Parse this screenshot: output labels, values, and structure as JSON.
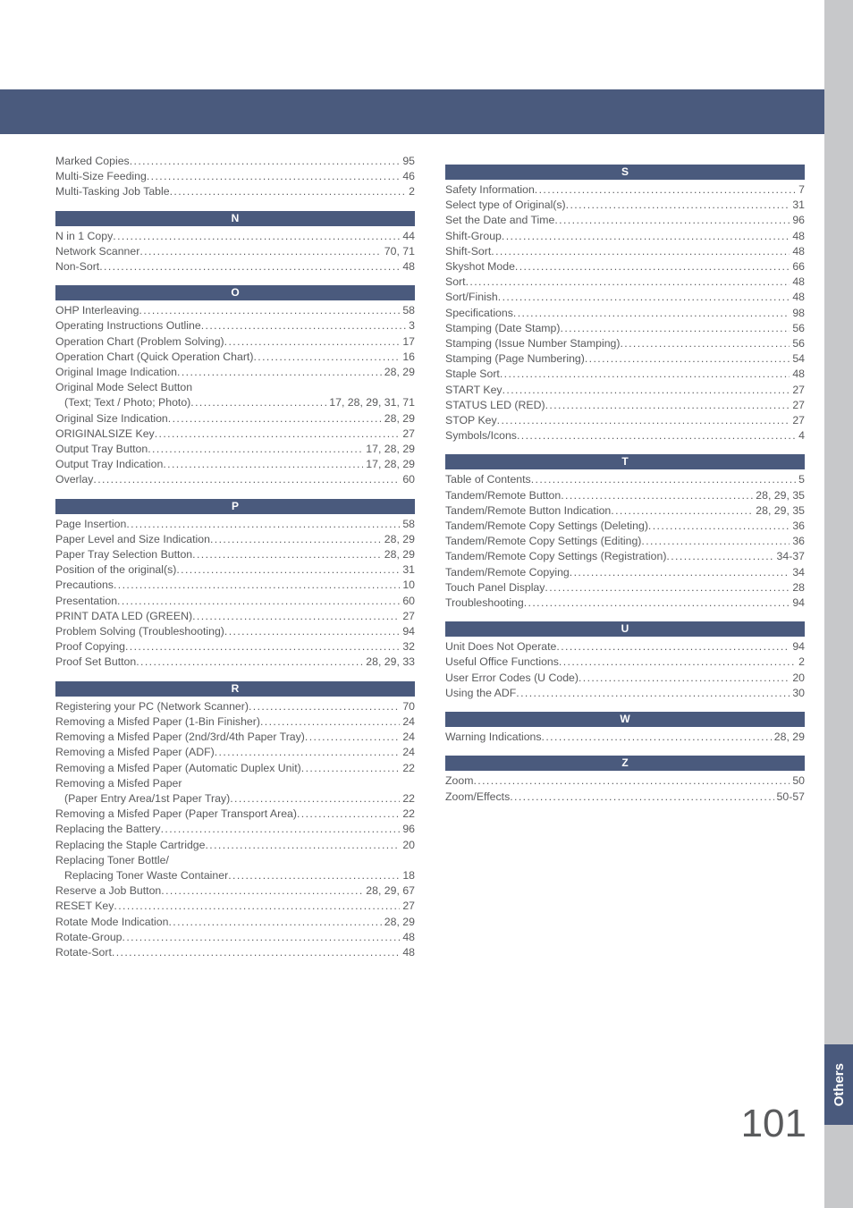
{
  "colors": {
    "accent": "#4a5a7d",
    "side_bar": "#c7c8ca",
    "text": "#595a5c",
    "white": "#ffffff"
  },
  "page_number": "101",
  "side_tab": "Others",
  "left_column": [
    {
      "type": "entry",
      "label": "Marked Copies",
      "page": "95"
    },
    {
      "type": "entry",
      "label": "Multi-Size Feeding",
      "page": "46"
    },
    {
      "type": "entry",
      "label": "Multi-Tasking Job Table",
      "page": "2"
    },
    {
      "type": "head",
      "letter": "N"
    },
    {
      "type": "entry",
      "label": "N in 1 Copy",
      "page": "44"
    },
    {
      "type": "entry",
      "label": "Network Scanner",
      "page": "70, 71"
    },
    {
      "type": "entry",
      "label": "Non-Sort",
      "page": "48"
    },
    {
      "type": "head",
      "letter": "O"
    },
    {
      "type": "entry",
      "label": "OHP Interleaving",
      "page": "58"
    },
    {
      "type": "entry",
      "label": "Operating Instructions Outline",
      "page": "3"
    },
    {
      "type": "entry",
      "label": "Operation Chart (Problem Solving)",
      "page": "17"
    },
    {
      "type": "entry",
      "label": "Operation Chart (Quick Operation Chart)",
      "page": "16"
    },
    {
      "type": "entry",
      "label": "Original Image Indication",
      "page": "28, 29"
    },
    {
      "type": "entry",
      "label": "Original Mode Select Button",
      "nopage": true
    },
    {
      "type": "entry",
      "label": "(Text; Text / Photo; Photo)",
      "page": "17,  28,  29, 31, 71",
      "indent": true
    },
    {
      "type": "entry",
      "label": "Original Size Indication",
      "page": "28, 29"
    },
    {
      "type": "entry",
      "label": "ORIGINALSIZE Key",
      "page": "27"
    },
    {
      "type": "entry",
      "label": "Output Tray Button",
      "page": "17, 28, 29"
    },
    {
      "type": "entry",
      "label": "Output Tray Indication",
      "page": "17, 28, 29"
    },
    {
      "type": "entry",
      "label": "Overlay",
      "page": "60"
    },
    {
      "type": "head",
      "letter": "P"
    },
    {
      "type": "entry",
      "label": "Page Insertion",
      "page": "58"
    },
    {
      "type": "entry",
      "label": "Paper Level and Size Indication",
      "page": "28, 29"
    },
    {
      "type": "entry",
      "label": "Paper Tray Selection Button",
      "page": "28, 29"
    },
    {
      "type": "entry",
      "label": "Position of the original(s)",
      "page": "31"
    },
    {
      "type": "entry",
      "label": "Precautions",
      "page": "10"
    },
    {
      "type": "entry",
      "label": "Presentation",
      "page": "60"
    },
    {
      "type": "entry",
      "label": "PRINT DATA LED (GREEN)",
      "page": "27"
    },
    {
      "type": "entry",
      "label": "Problem Solving (Troubleshooting)",
      "page": "94"
    },
    {
      "type": "entry",
      "label": "Proof Copying",
      "page": "32"
    },
    {
      "type": "entry",
      "label": "Proof Set Button",
      "page": "28, 29, 33"
    },
    {
      "type": "head",
      "letter": "R"
    },
    {
      "type": "entry",
      "label": "Registering your PC (Network Scanner)",
      "page": "70"
    },
    {
      "type": "entry",
      "label": "Removing a Misfed Paper (1-Bin Finisher)",
      "page": "24"
    },
    {
      "type": "entry",
      "label": "Removing a Misfed Paper (2nd/3rd/4th Paper Tray)",
      "page": "24"
    },
    {
      "type": "entry",
      "label": "Removing a Misfed Paper (ADF)",
      "page": "24"
    },
    {
      "type": "entry",
      "label": "Removing a Misfed Paper (Automatic Duplex Unit)",
      "page": "22"
    },
    {
      "type": "entry",
      "label": "Removing a Misfed Paper",
      "nopage": true
    },
    {
      "type": "entry",
      "label": "(Paper Entry Area/1st Paper Tray)",
      "page": "22",
      "indent": true
    },
    {
      "type": "entry",
      "label": "Removing a Misfed Paper (Paper Transport Area)",
      "page": "22"
    },
    {
      "type": "entry",
      "label": "Replacing the Battery",
      "page": "96"
    },
    {
      "type": "entry",
      "label": "Replacing the Staple Cartridge",
      "page": "20"
    },
    {
      "type": "entry",
      "label": "Replacing Toner Bottle/",
      "nopage": true
    },
    {
      "type": "entry",
      "label": "Replacing Toner Waste Container",
      "page": "18",
      "indent": true
    },
    {
      "type": "entry",
      "label": "Reserve a Job Button",
      "page": "28, 29, 67"
    },
    {
      "type": "entry",
      "label": "RESET Key",
      "page": "27"
    },
    {
      "type": "entry",
      "label": "Rotate Mode Indication",
      "page": "28, 29"
    },
    {
      "type": "entry",
      "label": "Rotate-Group",
      "page": "48"
    },
    {
      "type": "entry",
      "label": "Rotate-Sort",
      "page": "48"
    }
  ],
  "right_column": [
    {
      "type": "head",
      "letter": "S"
    },
    {
      "type": "entry",
      "label": "Safety Information",
      "page": "7"
    },
    {
      "type": "entry",
      "label": "Select type of Original(s)",
      "page": "31"
    },
    {
      "type": "entry",
      "label": "Set the Date and Time",
      "page": "96"
    },
    {
      "type": "entry",
      "label": "Shift-Group",
      "page": "48"
    },
    {
      "type": "entry",
      "label": "Shift-Sort",
      "page": "48"
    },
    {
      "type": "entry",
      "label": "Skyshot Mode",
      "page": "66"
    },
    {
      "type": "entry",
      "label": "Sort",
      "page": "48"
    },
    {
      "type": "entry",
      "label": "Sort/Finish",
      "page": "48"
    },
    {
      "type": "entry",
      "label": "Specifications",
      "page": "98"
    },
    {
      "type": "entry",
      "label": "Stamping (Date Stamp)",
      "page": "56"
    },
    {
      "type": "entry",
      "label": "Stamping (Issue Number Stamping)",
      "page": "56"
    },
    {
      "type": "entry",
      "label": "Stamping (Page Numbering)",
      "page": "54"
    },
    {
      "type": "entry",
      "label": "Staple Sort",
      "page": "48"
    },
    {
      "type": "entry",
      "label": "START Key",
      "page": "27"
    },
    {
      "type": "entry",
      "label": "STATUS LED (RED)",
      "page": "27"
    },
    {
      "type": "entry",
      "label": "STOP Key",
      "page": "27"
    },
    {
      "type": "entry",
      "label": "Symbols/Icons",
      "page": "4"
    },
    {
      "type": "head",
      "letter": "T"
    },
    {
      "type": "entry",
      "label": "Table of Contents",
      "page": "5"
    },
    {
      "type": "entry",
      "label": "Tandem/Remote Button",
      "page": "28, 29, 35"
    },
    {
      "type": "entry",
      "label": "Tandem/Remote Button Indication",
      "page": "28, 29, 35"
    },
    {
      "type": "entry",
      "label": "Tandem/Remote Copy Settings (Deleting)",
      "page": "36"
    },
    {
      "type": "entry",
      "label": "Tandem/Remote Copy Settings (Editing)",
      "page": "36"
    },
    {
      "type": "entry",
      "label": "Tandem/Remote Copy Settings (Registration)",
      "page": "34-37"
    },
    {
      "type": "entry",
      "label": "Tandem/Remote Copying",
      "page": "34"
    },
    {
      "type": "entry",
      "label": "Touch Panel Display",
      "page": "28"
    },
    {
      "type": "entry",
      "label": "Troubleshooting",
      "page": "94"
    },
    {
      "type": "head",
      "letter": "U"
    },
    {
      "type": "entry",
      "label": "Unit Does Not Operate",
      "page": "94"
    },
    {
      "type": "entry",
      "label": "Useful Office Functions",
      "page": "2"
    },
    {
      "type": "entry",
      "label": "User Error Codes (U Code)",
      "page": "20"
    },
    {
      "type": "entry",
      "label": "Using the ADF",
      "page": "30"
    },
    {
      "type": "head",
      "letter": "W"
    },
    {
      "type": "entry",
      "label": "Warning Indications",
      "page": "28, 29"
    },
    {
      "type": "head",
      "letter": "Z"
    },
    {
      "type": "entry",
      "label": "Zoom",
      "page": "50"
    },
    {
      "type": "entry",
      "label": "Zoom/Effects",
      "page": "50-57"
    }
  ]
}
